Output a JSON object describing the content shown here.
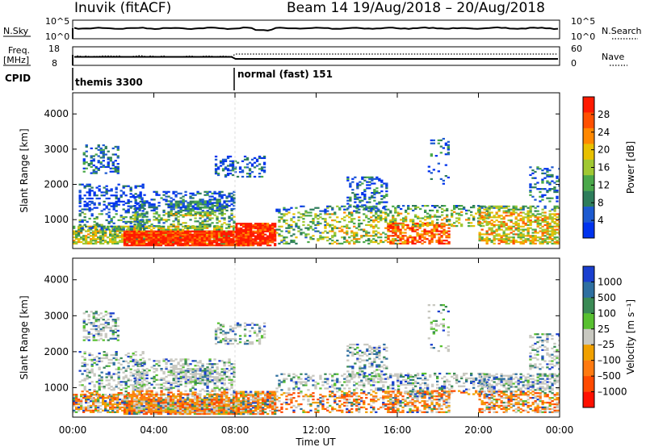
{
  "header": {
    "title": "Inuvik (fitACF)",
    "beam": "Beam 14 19/Aug/2018 – 20/Aug/2018"
  },
  "nsky": {
    "left_label": "N.Sky",
    "right_label": "N.Search",
    "left_ticks": [
      "10^5",
      "10^0"
    ],
    "right_ticks": [
      "10^5",
      "10^0"
    ]
  },
  "freq": {
    "left_label_top": "Freq.",
    "left_label_bot": "[MHz]",
    "right_label": "Nave",
    "left_ticks": [
      "18",
      "8"
    ],
    "right_ticks": [
      "60",
      "0"
    ]
  },
  "cpid": {
    "label": "CPID",
    "modes": [
      "themis 3300",
      "normal (fast) 151"
    ]
  },
  "chart_data": [
    {
      "type": "heatmap",
      "name": "power",
      "ylabel": "Slant Range [km]",
      "yticks": [
        "4000",
        "3000",
        "2000",
        "1000"
      ],
      "ylim": [
        180,
        4600
      ],
      "xlim": [
        0,
        24
      ],
      "colorbar_label": "Power [dB]",
      "colorbar_ticks": [
        "28",
        "24",
        "20",
        "16",
        "12",
        "8",
        "4"
      ],
      "colors": [
        "#0033ee",
        "#1d5ad0",
        "#2e7d5b",
        "#4aa84a",
        "#a0c832",
        "#e8c000",
        "#ff8800",
        "#ff5000",
        "#ff1a00"
      ]
    },
    {
      "type": "heatmap",
      "name": "velocity",
      "ylabel": "Slant Range [km]",
      "yticks": [
        "4000",
        "3000",
        "2000",
        "1000"
      ],
      "ylim": [
        180,
        4600
      ],
      "xlim": [
        0,
        24
      ],
      "xlabel": "Time UT",
      "xticks": [
        "00:00",
        "04:00",
        "08:00",
        "12:00",
        "16:00",
        "20:00",
        "00:00"
      ],
      "colorbar_label": "Velocity [m s⁻¹]",
      "colorbar_ticks": [
        "1000",
        "500",
        "100",
        "25",
        "–25",
        "–100",
        "–500",
        "–1000"
      ],
      "colors": [
        "#1a3fcf",
        "#2e6fa0",
        "#3a8a55",
        "#58c030",
        "#c8c8c0",
        "#f0a000",
        "#ff7a10",
        "#ff4a00",
        "#ff1000"
      ]
    }
  ]
}
